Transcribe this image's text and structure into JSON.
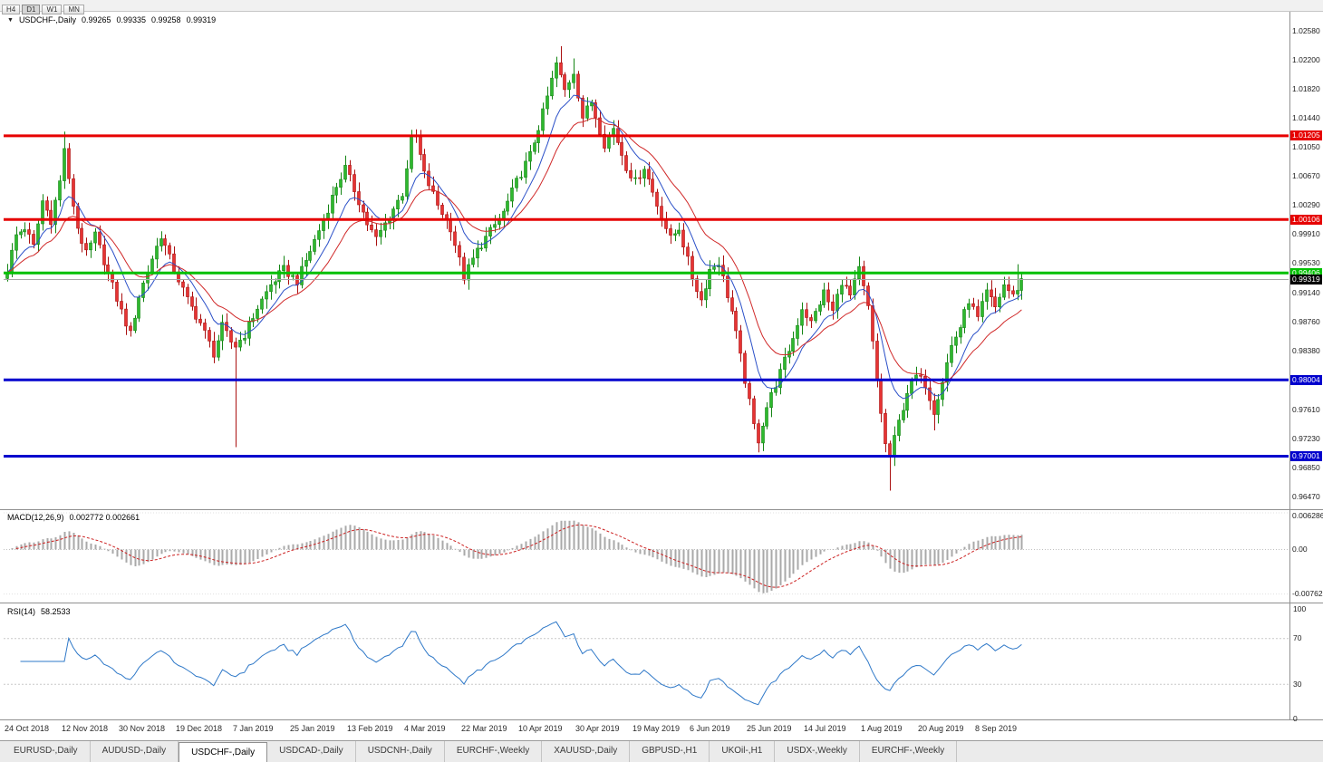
{
  "toolbar": {
    "timeframes": [
      {
        "label": "H4",
        "active": false
      },
      {
        "label": "D1",
        "active": true
      },
      {
        "label": "W1",
        "active": false
      },
      {
        "label": "MN",
        "active": false
      }
    ]
  },
  "chart_header": {
    "collapse_icon": "▼",
    "symbol_period": "USDCHF-,Daily",
    "open": "0.99265",
    "high": "0.99335",
    "low": "0.99258",
    "close": "0.99319"
  },
  "macd_header": {
    "title": "MACD(12,26,9)",
    "values_text": "0.002772 0.002661"
  },
  "rsi_header": {
    "title": "RSI(14)",
    "value": "58.2533"
  },
  "tabs": {
    "active_index": 2,
    "items": [
      "EURUSD-,Daily",
      "AUDUSD-,Daily",
      "USDCHF-,Daily",
      "USDCAD-,Daily",
      "USDCNH-,Daily",
      "EURCHF-,Weekly",
      "XAUUSD-,Daily",
      "GBPUSD-,H1",
      "UKOil-,H1",
      "USDX-,Weekly",
      "EURCHF-,Weekly"
    ]
  },
  "chart_data": {
    "type": "candlestick",
    "symbol": "USDCHF-",
    "period": "Daily",
    "title": "USDCHF-,Daily 0.99265 0.99335 0.99258 0.99319",
    "y_axis_range": [
      0.9633,
      1.0282
    ],
    "y_ticks": [
      "1.02580",
      "1.02200",
      "1.01820",
      "1.01440",
      "1.01050",
      "1.00670",
      "1.00290",
      "0.99910",
      "0.99530",
      "0.99140",
      "0.98760",
      "0.98380",
      "0.97610",
      "0.97230",
      "0.96850",
      "0.96470"
    ],
    "x_axis_dates": [
      {
        "i": 0,
        "label": "24 Oct 2018"
      },
      {
        "i": 13,
        "label": "12 Nov 2018"
      },
      {
        "i": 26,
        "label": "30 Nov 2018"
      },
      {
        "i": 39,
        "label": "19 Dec 2018"
      },
      {
        "i": 52,
        "label": "7 Jan 2019"
      },
      {
        "i": 65,
        "label": "25 Jan 2019"
      },
      {
        "i": 78,
        "label": "13 Feb 2019"
      },
      {
        "i": 91,
        "label": "4 Mar 2019"
      },
      {
        "i": 104,
        "label": "22 Mar 2019"
      },
      {
        "i": 117,
        "label": "10 Apr 2019"
      },
      {
        "i": 130,
        "label": "30 Apr 2019"
      },
      {
        "i": 143,
        "label": "19 May 2019"
      },
      {
        "i": 156,
        "label": "6 Jun 2019"
      },
      {
        "i": 169,
        "label": "25 Jun 2019"
      },
      {
        "i": 182,
        "label": "14 Jul 2019"
      },
      {
        "i": 195,
        "label": "1 Aug 2019"
      },
      {
        "i": 208,
        "label": "20 Aug 2019"
      },
      {
        "i": 221,
        "label": "8 Sep 2019"
      }
    ],
    "candles_approx": {
      "count": 232,
      "close_waypoints": [
        [
          0,
          0.9945
        ],
        [
          2,
          0.999
        ],
        [
          4,
          1.0
        ],
        [
          6,
          0.9975
        ],
        [
          8,
          1.0035
        ],
        [
          10,
          1.001
        ],
        [
          12,
          1.006
        ],
        [
          13,
          1.0105
        ],
        [
          14,
          1.006
        ],
        [
          16,
          1.0
        ],
        [
          18,
          0.9965
        ],
        [
          20,
          0.999
        ],
        [
          23,
          0.994
        ],
        [
          26,
          0.989
        ],
        [
          28,
          0.986
        ],
        [
          30,
          0.991
        ],
        [
          33,
          0.996
        ],
        [
          35,
          0.999
        ],
        [
          38,
          0.9945
        ],
        [
          41,
          0.9905
        ],
        [
          44,
          0.9875
        ],
        [
          47,
          0.9835
        ],
        [
          49,
          0.987
        ],
        [
          51,
          0.985
        ],
        [
          52,
          0.9845
        ],
        [
          54,
          0.986
        ],
        [
          57,
          0.9895
        ],
        [
          60,
          0.9925
        ],
        [
          63,
          0.9945
        ],
        [
          66,
          0.993
        ],
        [
          69,
          0.997
        ],
        [
          72,
          1.001
        ],
        [
          75,
          1.0055
        ],
        [
          77,
          1.0078
        ],
        [
          79,
          1.005
        ],
        [
          82,
          1.0005
        ],
        [
          84,
          0.9985
        ],
        [
          87,
          1.0015
        ],
        [
          90,
          1.0045
        ],
        [
          92,
          1.0115
        ],
        [
          93,
          1.0118
        ],
        [
          95,
          1.007
        ],
        [
          98,
          1.003
        ],
        [
          101,
          1.0
        ],
        [
          104,
          0.9935
        ],
        [
          107,
          0.997
        ],
        [
          110,
          0.9995
        ],
        [
          113,
          1.002
        ],
        [
          116,
          1.006
        ],
        [
          119,
          1.0095
        ],
        [
          122,
          1.015
        ],
        [
          125,
          1.0215
        ],
        [
          127,
          1.018
        ],
        [
          129,
          1.0205
        ],
        [
          131,
          1.0145
        ],
        [
          133,
          1.0165
        ],
        [
          136,
          1.011
        ],
        [
          138,
          1.013
        ],
        [
          141,
          1.008
        ],
        [
          143,
          1.006
        ],
        [
          145,
          1.008
        ],
        [
          148,
          1.003
        ],
        [
          151,
          0.9985
        ],
        [
          153,
          1.0
        ],
        [
          156,
          0.9935
        ],
        [
          158,
          0.9905
        ],
        [
          160,
          0.9945
        ],
        [
          162,
          0.9955
        ],
        [
          165,
          0.989
        ],
        [
          168,
          0.98
        ],
        [
          170,
          0.974
        ],
        [
          171,
          0.9722
        ],
        [
          173,
          0.9765
        ],
        [
          176,
          0.981
        ],
        [
          179,
          0.9855
        ],
        [
          181,
          0.9895
        ],
        [
          183,
          0.9875
        ],
        [
          186,
          0.9915
        ],
        [
          188,
          0.989
        ],
        [
          190,
          0.993
        ],
        [
          192,
          0.991
        ],
        [
          194,
          0.9945
        ],
        [
          196,
          0.9895
        ],
        [
          198,
          0.98
        ],
        [
          200,
          0.9715
        ],
        [
          201,
          0.97
        ],
        [
          203,
          0.9745
        ],
        [
          205,
          0.9785
        ],
        [
          207,
          0.9805
        ],
        [
          209,
          0.9795
        ],
        [
          211,
          0.976
        ],
        [
          213,
          0.98
        ],
        [
          215,
          0.9845
        ],
        [
          217,
          0.987
        ],
        [
          219,
          0.9905
        ],
        [
          221,
          0.988
        ],
        [
          223,
          0.9915
        ],
        [
          225,
          0.9895
        ],
        [
          227,
          0.9925
        ],
        [
          229,
          0.991
        ],
        [
          231,
          0.9932
        ]
      ],
      "wick_extremes": [
        {
          "index": 13,
          "high": 1.0126
        },
        {
          "index": 52,
          "low": 0.9712
        },
        {
          "index": 77,
          "high": 1.0094
        },
        {
          "index": 93,
          "high": 1.0124
        },
        {
          "index": 126,
          "high": 1.0238
        },
        {
          "index": 129,
          "high": 1.0222
        },
        {
          "index": 171,
          "low": 0.9706
        },
        {
          "index": 201,
          "low": 0.9655
        },
        {
          "index": 211,
          "low": 0.9734
        },
        {
          "index": 230,
          "high": 0.9952
        }
      ]
    },
    "horizontal_levels": [
      {
        "price": 1.01205,
        "label": "1.01205",
        "color": "#e60000"
      },
      {
        "price": 1.00106,
        "label": "1.00106",
        "color": "#e60000"
      },
      {
        "price": 0.99406,
        "label": "0.99406",
        "color": "#00c000"
      },
      {
        "price": 0.98004,
        "label": "0.98004",
        "color": "#0000cd"
      },
      {
        "price": 0.97001,
        "label": "0.97001",
        "color": "#0000cd"
      }
    ],
    "current_price": {
      "value": 0.99319,
      "label": "0.99319",
      "badge_color": "#000000",
      "line_color": "#a8a8a8"
    },
    "moving_averages": [
      {
        "name": "fast-ma",
        "period": 9,
        "color": "#2b50c8"
      },
      {
        "name": "slow-ma",
        "period": 18,
        "color": "#d02828"
      }
    ],
    "indicators": [
      {
        "name": "MACD",
        "params": "12,26,9",
        "current_values": [
          0.002772,
          0.002661
        ],
        "range": [
          -0.008,
          0.0066
        ],
        "axis_labels": [
          "0.006286",
          "0.00",
          "-0.00762"
        ],
        "histogram_color": "#a9a9a9",
        "signal_color": "#cc2020"
      },
      {
        "name": "RSI",
        "params": "14",
        "current_value": 58.2533,
        "range": [
          0,
          100
        ],
        "axis_labels": [
          "100",
          "70",
          "30",
          "0"
        ],
        "guides": [
          70,
          30
        ],
        "line_color": "#2e78c8"
      }
    ],
    "candle_colors": {
      "up_fill": "#2eb82e",
      "up_stroke": "#158515",
      "down_fill": "#e63333",
      "down_stroke": "#aa1111"
    }
  }
}
